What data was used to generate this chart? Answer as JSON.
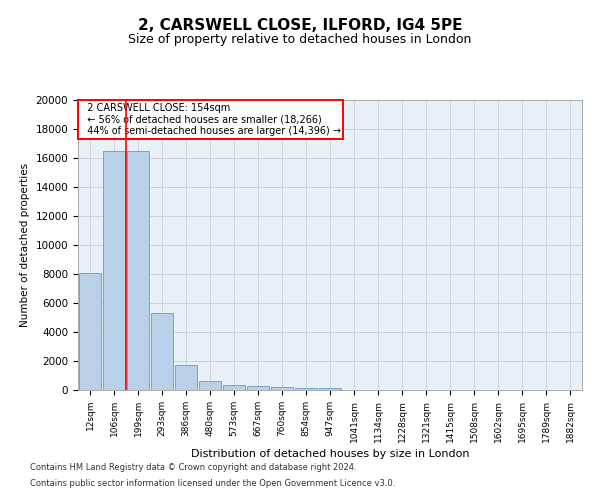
{
  "title1": "2, CARSWELL CLOSE, ILFORD, IG4 5PE",
  "title2": "Size of property relative to detached houses in London",
  "xlabel": "Distribution of detached houses by size in London",
  "ylabel": "Number of detached properties",
  "bar_values": [
    8100,
    16500,
    16500,
    5300,
    1750,
    600,
    350,
    280,
    220,
    150,
    120,
    0,
    0,
    0,
    0,
    0,
    0,
    0,
    0,
    0,
    0
  ],
  "bar_labels": [
    "12sqm",
    "106sqm",
    "199sqm",
    "293sqm",
    "386sqm",
    "480sqm",
    "573sqm",
    "667sqm",
    "760sqm",
    "854sqm",
    "947sqm",
    "1041sqm",
    "1134sqm",
    "1228sqm",
    "1321sqm",
    "1415sqm",
    "1508sqm",
    "1602sqm",
    "1695sqm",
    "1789sqm",
    "1882sqm"
  ],
  "ylim": [
    0,
    20000
  ],
  "yticks": [
    0,
    2000,
    4000,
    6000,
    8000,
    10000,
    12000,
    14000,
    16000,
    18000,
    20000
  ],
  "bar_color": "#b8d0e8",
  "bar_edge_color": "#6699cc",
  "redline_x": 1.5,
  "annotation_title": "2 CARSWELL CLOSE: 154sqm",
  "annotation_line1": "← 56% of detached houses are smaller (18,266)",
  "annotation_line2": "44% of semi-detached houses are larger (14,396) →",
  "footer1": "Contains HM Land Registry data © Crown copyright and database right 2024.",
  "footer2": "Contains public sector information licensed under the Open Government Licence v3.0.",
  "bg_color": "#ffffff",
  "plot_bg_color": "#e8f0f8",
  "grid_color": "#cccccc",
  "title1_fontsize": 11,
  "title2_fontsize": 9
}
